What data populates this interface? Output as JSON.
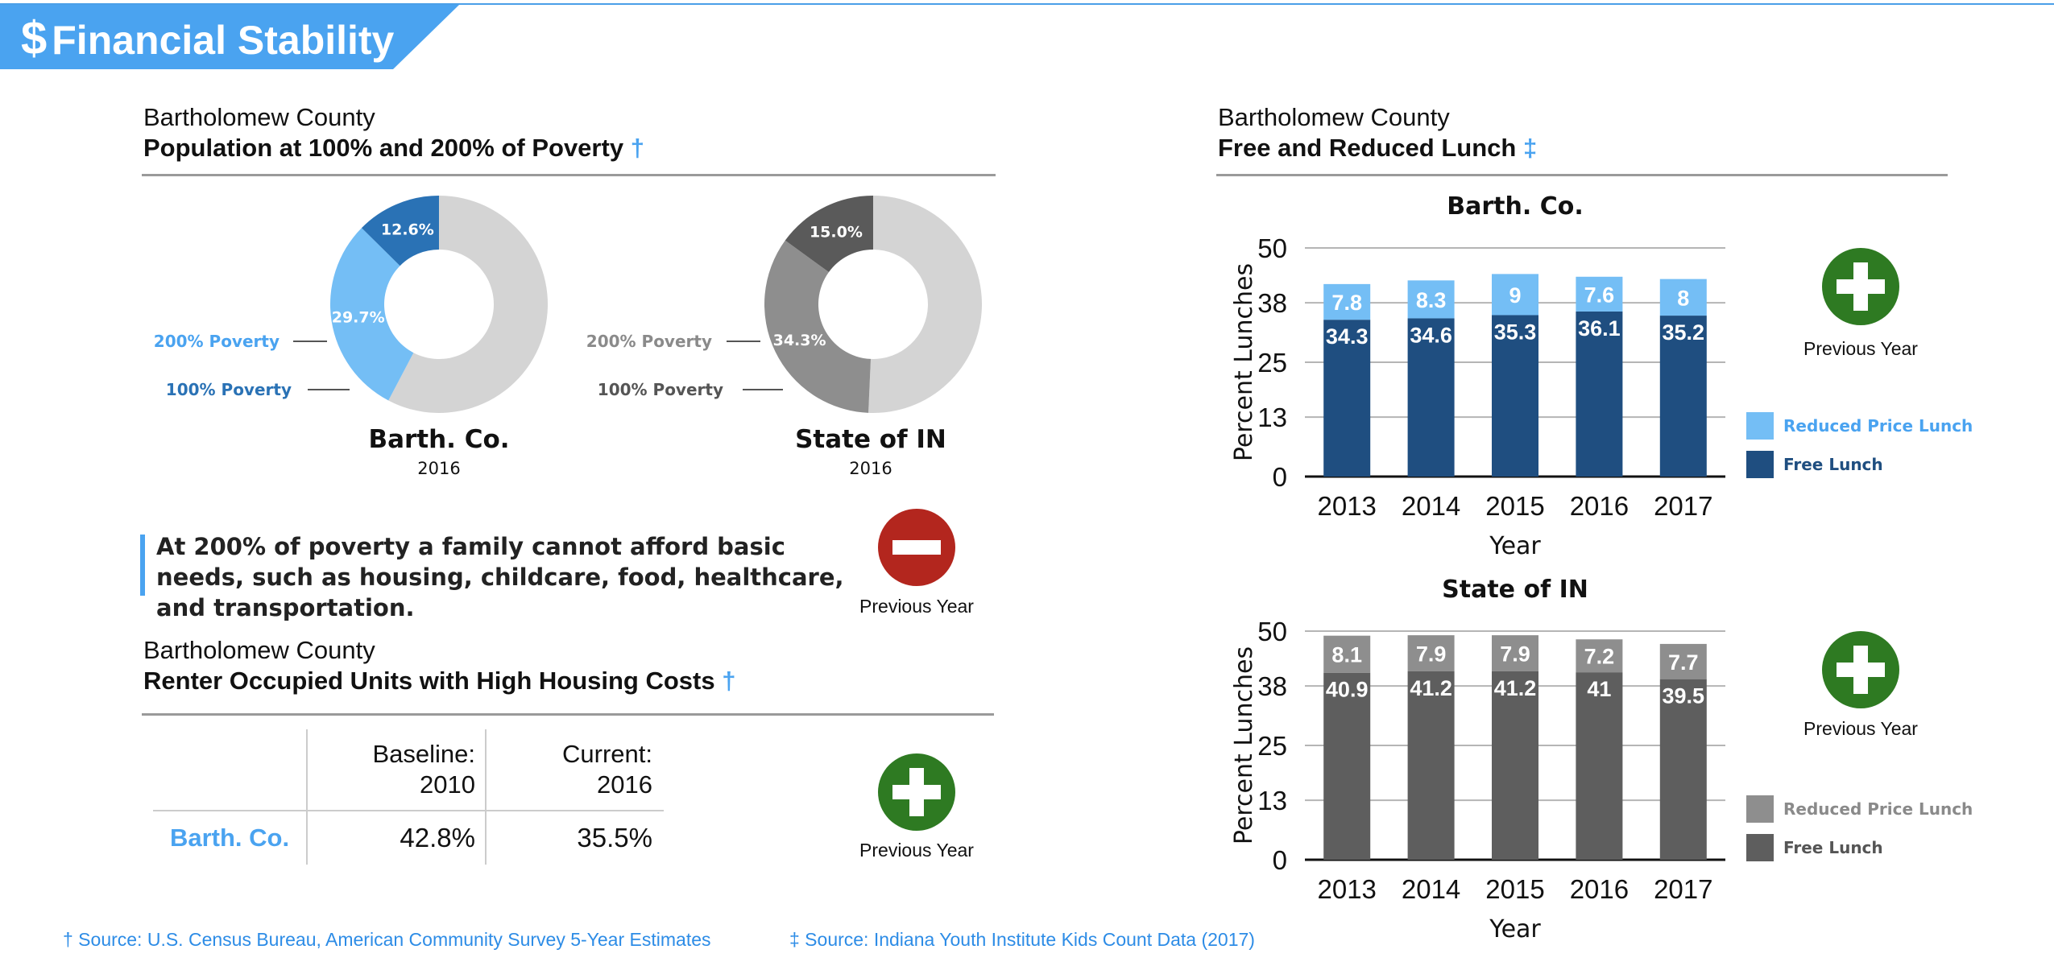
{
  "banner": {
    "icon": "$",
    "title": "Financial Stability"
  },
  "poverty": {
    "county": "Bartholomew County",
    "title": "Population at 100% and 200% of Poverty",
    "dagger": "†",
    "donuts": [
      {
        "name": "Barth. Co.",
        "year": "2016",
        "label_200": "200% Poverty",
        "label_100": "100% Poverty",
        "pct_200": 29.7,
        "pct_100": 12.6,
        "text_200": "29.7%",
        "text_100": "12.6%",
        "color_200": "#74bef5",
        "color_100": "#2a72b5",
        "color_rest": "#d4d4d4",
        "label_color_200": "#4aa3f0",
        "label_color_100": "#2a72b5"
      },
      {
        "name": "State of IN",
        "year": "2016",
        "label_200": "200% Poverty",
        "label_100": "100% Poverty",
        "pct_200": 34.3,
        "pct_100": 15.0,
        "text_200": "34.3%",
        "text_100": "15.0%",
        "color_200": "#8e8e8e",
        "color_100": "#5a5a5a",
        "color_rest": "#d4d4d4",
        "label_color_200": "#8a8a8a",
        "label_color_100": "#555555"
      }
    ]
  },
  "quote": "At 200% of poverty a family cannot afford basic needs, such as housing, childcare, food, healthcare, and transportation.",
  "prev_year_label": "Previous Year",
  "housing": {
    "county": "Bartholomew County",
    "title": "Renter Occupied Units with High Housing Costs",
    "dagger": "†",
    "col1_line1": "Baseline:",
    "col1_line2": "2010",
    "col2_line1": "Current:",
    "col2_line2": "2016",
    "row_label": "Barth. Co.",
    "baseline": "42.8%",
    "current": "35.5%"
  },
  "lunch": {
    "county": "Bartholomew County",
    "title": "Free and Reduced Lunch",
    "dagger": "‡"
  },
  "chart_data": [
    {
      "type": "bar",
      "stacked": true,
      "title": "Barth. Co.",
      "xlabel": "Year",
      "ylabel": "Percent Lunches",
      "categories": [
        "2013",
        "2014",
        "2015",
        "2016",
        "2017"
      ],
      "yticks": [
        0,
        13,
        25,
        38,
        50
      ],
      "ylim": [
        0,
        50
      ],
      "grid": true,
      "legend_position": "right",
      "series": [
        {
          "name": "Free Lunch",
          "values": [
            34.3,
            34.6,
            35.3,
            36.1,
            35.2
          ],
          "labels": [
            "34.3",
            "34.6",
            "35.3",
            "36.1",
            "35.2"
          ],
          "color": "#1f4e80"
        },
        {
          "name": "Reduced Price Lunch",
          "values": [
            7.8,
            8.3,
            9,
            7.6,
            8
          ],
          "labels": [
            "7.8",
            "8.3",
            "9",
            "7.6",
            "8"
          ],
          "color": "#74bef5"
        }
      ],
      "legend_colors": {
        "Reduced Price Lunch": "#4aa3f0",
        "Free Lunch": "#1f4e80"
      }
    },
    {
      "type": "bar",
      "stacked": true,
      "title": "State of IN",
      "xlabel": "Year",
      "ylabel": "Percent Lunches",
      "categories": [
        "2013",
        "2014",
        "2015",
        "2016",
        "2017"
      ],
      "yticks": [
        0,
        13,
        25,
        38,
        50
      ],
      "ylim": [
        0,
        50
      ],
      "grid": true,
      "legend_position": "right",
      "series": [
        {
          "name": "Free Lunch",
          "values": [
            40.9,
            41.2,
            41.2,
            41,
            39.5
          ],
          "labels": [
            "40.9",
            "41.2",
            "41.2",
            "41",
            "39.5"
          ],
          "color": "#5e5e5e"
        },
        {
          "name": "Reduced Price Lunch",
          "values": [
            8.1,
            7.9,
            7.9,
            7.2,
            7.7
          ],
          "labels": [
            "8.1",
            "7.9",
            "7.9",
            "7.2",
            "7.7"
          ],
          "color": "#8e8e8e"
        }
      ],
      "legend_colors": {
        "Reduced Price Lunch": "#8a8a8a",
        "Free Lunch": "#555555"
      }
    }
  ],
  "sources": {
    "census": "† Source:  U.S. Census Bureau, American Community Survey 5-Year Estimates",
    "iyi": "‡ Source: Indiana Youth Institute Kids Count Data (2017)"
  },
  "badge_colors": {
    "plus": "#2e7a22",
    "minus": "#b3261e"
  }
}
